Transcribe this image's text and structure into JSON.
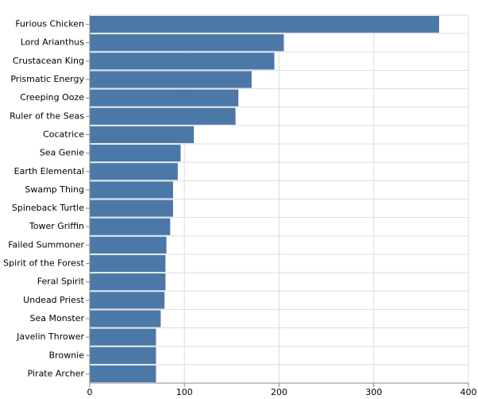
{
  "chart_data": {
    "type": "bar",
    "orientation": "horizontal",
    "categories": [
      "Furious Chicken",
      "Lord Arianthus",
      "Crustacean King",
      "Prismatic Energy",
      "Creeping Ooze",
      "Ruler of the Seas",
      "Cocatrice",
      "Sea Genie",
      "Earth Elemental",
      "Swamp Thing",
      "Spineback Turtle",
      "Tower Griffin",
      "Failed Summoner",
      "Spirit of the Forest",
      "Feral Spirit",
      "Undead Priest",
      "Sea Monster",
      "Javelin Thrower",
      "Brownie",
      "Pirate Archer"
    ],
    "values": [
      369,
      205,
      195,
      171,
      157,
      154,
      110,
      96,
      93,
      88,
      88,
      85,
      81,
      80,
      80,
      79,
      75,
      70,
      70,
      70
    ],
    "color": "#4c78a8",
    "xlim": [
      0,
      400
    ],
    "xticks": [
      0,
      100,
      200,
      300,
      400
    ],
    "grid": true
  }
}
